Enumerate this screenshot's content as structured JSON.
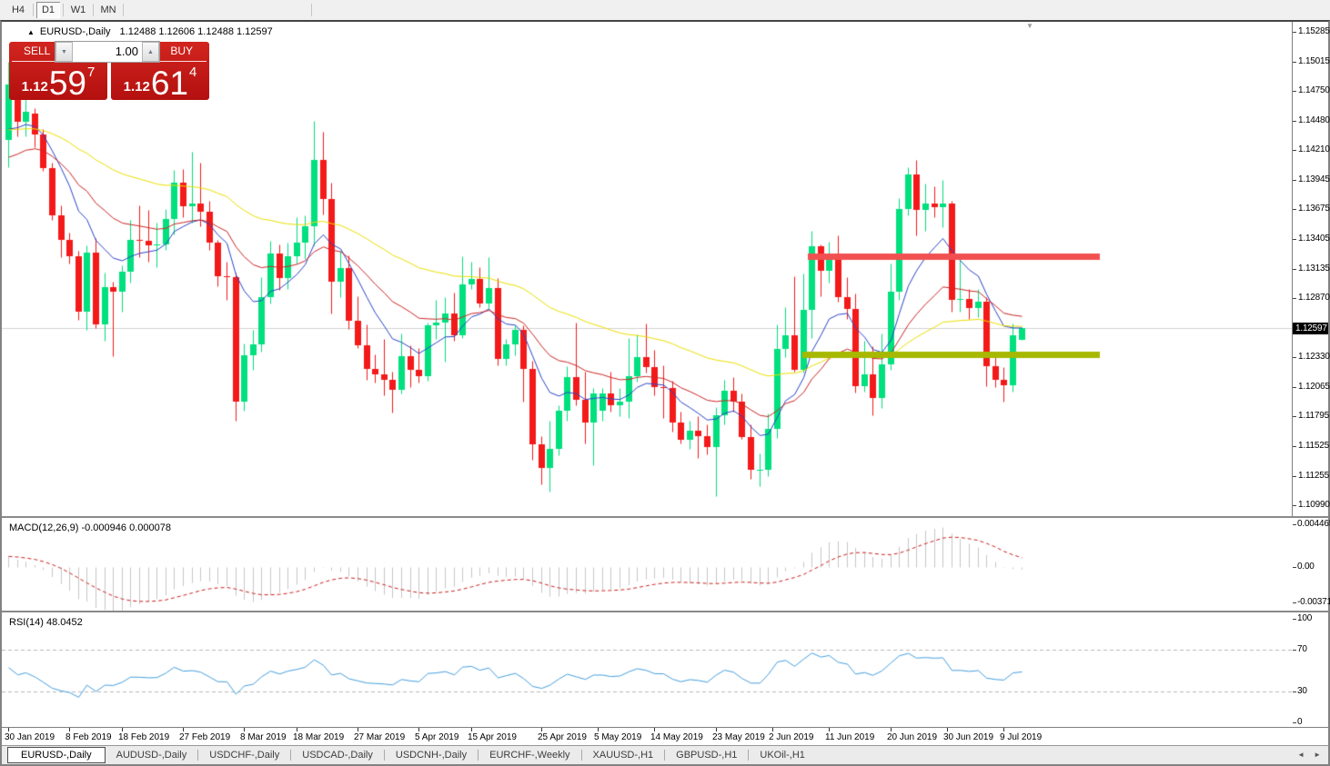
{
  "toolbar": {
    "timeframes": [
      {
        "label": "H4",
        "active": false
      },
      {
        "label": "D1",
        "active": true
      },
      {
        "label": "W1",
        "active": false
      },
      {
        "label": "MN",
        "active": false
      }
    ]
  },
  "chart_header": {
    "collapse_icon": "▲",
    "symbol_period": "EURUSD-,Daily",
    "ohlc_text": "1.12488 1.12606 1.12488 1.12597",
    "scroll_marker": "▼"
  },
  "one_click": {
    "sell_label": "SELL",
    "buy_label": "BUY",
    "volume": "1.00",
    "spin_down_icon": "▼",
    "spin_up_icon": "▲",
    "sell_price_small": "1.12",
    "sell_price_big": "59",
    "sell_price_sup": "7",
    "buy_price_small": "1.12",
    "buy_price_big": "61",
    "buy_price_sup": "4"
  },
  "price_scale": {
    "ticks": [
      "1.15285",
      "1.15015",
      "1.14750",
      "1.14480",
      "1.14210",
      "1.13945",
      "1.13675",
      "1.13405",
      "1.13135",
      "1.12870",
      "1.12330",
      "1.12065",
      "1.11795",
      "1.11525",
      "1.11255",
      "1.10990"
    ],
    "current": "1.12597"
  },
  "macd_panel": {
    "label": "MACD(12,26,9) -0.000946 0.000078",
    "scale": [
      "0.004465",
      "0.00",
      "-0.003715"
    ]
  },
  "rsi_panel": {
    "label": "RSI(14) 48.0452",
    "scale": [
      "100",
      "70",
      "30",
      "0"
    ]
  },
  "date_axis": {
    "labels": [
      {
        "text": "30 Jan 2019",
        "i": 0
      },
      {
        "text": "8 Feb 2019",
        "i": 7
      },
      {
        "text": "18 Feb 2019",
        "i": 13
      },
      {
        "text": "27 Feb 2019",
        "i": 20
      },
      {
        "text": "8 Mar 2019",
        "i": 27
      },
      {
        "text": "18 Mar 2019",
        "i": 33
      },
      {
        "text": "27 Mar 2019",
        "i": 40
      },
      {
        "text": "5 Apr 2019",
        "i": 47
      },
      {
        "text": "15 Apr 2019",
        "i": 53
      },
      {
        "text": "25 Apr 2019",
        "i": 61
      },
      {
        "text": "5 May 2019",
        "i": 67.5
      },
      {
        "text": "14 May 2019",
        "i": 74
      },
      {
        "text": "23 May 2019",
        "i": 81
      },
      {
        "text": "2 Jun 2019",
        "i": 87.5
      },
      {
        "text": "11 Jun 2019",
        "i": 94
      },
      {
        "text": "20 Jun 2019",
        "i": 101
      },
      {
        "text": "30 Jun 2019",
        "i": 107.5
      },
      {
        "text": "9 Jul 2019",
        "i": 114
      }
    ]
  },
  "tabs": {
    "items": [
      {
        "label": "EURUSD-,Daily",
        "active": true
      },
      {
        "label": "AUDUSD-,Daily",
        "active": false
      },
      {
        "label": "USDCHF-,Daily",
        "active": false
      },
      {
        "label": "USDCAD-,Daily",
        "active": false
      },
      {
        "label": "USDCNH-,Daily",
        "active": false
      },
      {
        "label": "EURCHF-,Weekly",
        "active": false
      },
      {
        "label": "XAUUSD-,H1",
        "active": false
      },
      {
        "label": "GBPUSD-,H1",
        "active": false
      },
      {
        "label": "UKOil-,H1",
        "active": false
      }
    ],
    "nav_left": "◄",
    "nav_right": "►"
  },
  "chart_data": {
    "type": "candlestick",
    "symbol": "EURUSD-",
    "period": "Daily",
    "ylim": [
      1.1099,
      1.15285
    ],
    "current_price": 1.12597,
    "colors": {
      "candle_up": "#00e07e",
      "candle_down": "#f41a1a",
      "ma_fast": "#2b45c8",
      "ma_mid": "#cc2626",
      "ma_slow": "#ece000",
      "resistance_line": "#f25050",
      "support_line": "#a6b800",
      "current_line": "#d3d3d3",
      "macd_hist": "#c6c6c6",
      "macd_signal": "#cc2222",
      "rsi_line": "#46a0e0",
      "rsi_levels": "#b8b8b8"
    },
    "overlays": [
      {
        "name": "ma_fast",
        "type": "EMA",
        "period": 9,
        "seed": 1.143
      },
      {
        "name": "ma_mid",
        "type": "EMA",
        "period": 21,
        "seed": 1.1408
      },
      {
        "name": "ma_slow",
        "type": "EMA",
        "period": 50,
        "seed": 1.1438
      }
    ],
    "hlines": [
      {
        "name": "resistance",
        "price": 1.1325,
        "x_from": 886,
        "x_to": 1207,
        "thickness": 7
      },
      {
        "name": "support",
        "price": 1.1236,
        "x_from": 880,
        "x_to": 1207,
        "thickness": 7
      }
    ],
    "indicators": {
      "macd": {
        "fast": 12,
        "slow": 26,
        "signal": 9,
        "value": -0.000946,
        "signal_value": 7.8e-05,
        "scale_max": 0.004465,
        "scale_min": -0.003715
      },
      "rsi": {
        "period": 14,
        "value": 48.0452,
        "levels": [
          70,
          30
        ],
        "scale": [
          0,
          100
        ]
      }
    },
    "candles": [
      [
        "2019-01-30",
        1.143,
        1.1501,
        1.1406,
        1.1481
      ],
      [
        "2019-01-31",
        1.1481,
        1.1489,
        1.1434,
        1.1447
      ],
      [
        "2019-02-01",
        1.1447,
        1.1488,
        1.1434,
        1.1456
      ],
      [
        "2019-02-04",
        1.1454,
        1.1459,
        1.1424,
        1.1435
      ],
      [
        "2019-02-05",
        1.1435,
        1.144,
        1.1402,
        1.1405
      ],
      [
        "2019-02-06",
        1.1405,
        1.141,
        1.1358,
        1.1362
      ],
      [
        "2019-02-07",
        1.1362,
        1.1371,
        1.1324,
        1.134
      ],
      [
        "2019-02-08",
        1.134,
        1.1346,
        1.1318,
        1.1325
      ],
      [
        "2019-02-11",
        1.1325,
        1.133,
        1.1267,
        1.1275
      ],
      [
        "2019-02-12",
        1.1275,
        1.1335,
        1.1258,
        1.1328
      ],
      [
        "2019-02-13",
        1.1328,
        1.1341,
        1.126,
        1.1263
      ],
      [
        "2019-02-14",
        1.1263,
        1.131,
        1.1248,
        1.1297
      ],
      [
        "2019-02-15",
        1.1297,
        1.1302,
        1.1234,
        1.1293
      ],
      [
        "2019-02-18",
        1.1293,
        1.1317,
        1.1275,
        1.1311
      ],
      [
        "2019-02-19",
        1.1311,
        1.1358,
        1.1301,
        1.134
      ],
      [
        "2019-02-20",
        1.134,
        1.1371,
        1.1324,
        1.1339
      ],
      [
        "2019-02-21",
        1.1339,
        1.1367,
        1.132,
        1.1335
      ],
      [
        "2019-02-22",
        1.1335,
        1.1355,
        1.1315,
        1.1336
      ],
      [
        "2019-02-25",
        1.1336,
        1.1368,
        1.1331,
        1.1359
      ],
      [
        "2019-02-26",
        1.1359,
        1.1403,
        1.1345,
        1.1392
      ],
      [
        "2019-02-27",
        1.1392,
        1.1404,
        1.136,
        1.137
      ],
      [
        "2019-02-28",
        1.137,
        1.142,
        1.1355,
        1.1373
      ],
      [
        "2019-03-01",
        1.1373,
        1.141,
        1.1352,
        1.1365
      ],
      [
        "2019-03-04",
        1.1365,
        1.1375,
        1.1331,
        1.1337
      ],
      [
        "2019-03-05",
        1.1337,
        1.134,
        1.1298,
        1.1307
      ],
      [
        "2019-03-06",
        1.1307,
        1.132,
        1.1285,
        1.1306
      ],
      [
        "2019-03-07",
        1.1306,
        1.131,
        1.1176,
        1.1193
      ],
      [
        "2019-03-08",
        1.1193,
        1.1246,
        1.1185,
        1.1235
      ],
      [
        "2019-03-11",
        1.1235,
        1.1258,
        1.1222,
        1.1245
      ],
      [
        "2019-03-12",
        1.1245,
        1.1306,
        1.1238,
        1.1288
      ],
      [
        "2019-03-13",
        1.1288,
        1.1339,
        1.1282,
        1.1327
      ],
      [
        "2019-03-14",
        1.1327,
        1.1336,
        1.1294,
        1.1305
      ],
      [
        "2019-03-15",
        1.1305,
        1.1337,
        1.1295,
        1.1325
      ],
      [
        "2019-03-18",
        1.1325,
        1.136,
        1.1318,
        1.1337
      ],
      [
        "2019-03-19",
        1.1337,
        1.1362,
        1.1322,
        1.1352
      ],
      [
        "2019-03-20",
        1.1352,
        1.1448,
        1.1335,
        1.1412
      ],
      [
        "2019-03-21",
        1.1412,
        1.1438,
        1.1363,
        1.1377
      ],
      [
        "2019-03-22",
        1.1377,
        1.1392,
        1.1273,
        1.1302
      ],
      [
        "2019-03-25",
        1.1302,
        1.133,
        1.1288,
        1.1314
      ],
      [
        "2019-03-26",
        1.1314,
        1.1326,
        1.1259,
        1.1266
      ],
      [
        "2019-03-27",
        1.1266,
        1.1289,
        1.1242,
        1.1244
      ],
      [
        "2019-03-28",
        1.1244,
        1.1263,
        1.1213,
        1.1223
      ],
      [
        "2019-03-29",
        1.1223,
        1.1236,
        1.121,
        1.1218
      ],
      [
        "2019-04-01",
        1.1218,
        1.125,
        1.1199,
        1.1213
      ],
      [
        "2019-04-02",
        1.1213,
        1.122,
        1.1183,
        1.1204
      ],
      [
        "2019-04-03",
        1.1204,
        1.1255,
        1.12,
        1.1234
      ],
      [
        "2019-04-04",
        1.1234,
        1.1244,
        1.1206,
        1.1222
      ],
      [
        "2019-04-05",
        1.1222,
        1.1242,
        1.121,
        1.1216
      ],
      [
        "2019-04-08",
        1.1216,
        1.1265,
        1.1212,
        1.1262
      ],
      [
        "2019-04-09",
        1.1262,
        1.1285,
        1.125,
        1.1265
      ],
      [
        "2019-04-10",
        1.1265,
        1.1288,
        1.1229,
        1.1273
      ],
      [
        "2019-04-11",
        1.1273,
        1.1292,
        1.1248,
        1.1253
      ],
      [
        "2019-04-12",
        1.1253,
        1.1325,
        1.1251,
        1.1299
      ],
      [
        "2019-04-15",
        1.1299,
        1.132,
        1.1295,
        1.1304
      ],
      [
        "2019-04-16",
        1.1304,
        1.1315,
        1.1279,
        1.1282
      ],
      [
        "2019-04-17",
        1.1282,
        1.1324,
        1.1278,
        1.1296
      ],
      [
        "2019-04-18",
        1.1296,
        1.1305,
        1.1226,
        1.1232
      ],
      [
        "2019-04-19",
        1.1232,
        1.125,
        1.1226,
        1.1245
      ],
      [
        "2019-04-22",
        1.1245,
        1.1262,
        1.1235,
        1.1258
      ],
      [
        "2019-04-23",
        1.1258,
        1.1262,
        1.1193,
        1.1223
      ],
      [
        "2019-04-24",
        1.1223,
        1.123,
        1.114,
        1.1154
      ],
      [
        "2019-04-25",
        1.1154,
        1.1162,
        1.1118,
        1.1133
      ],
      [
        "2019-04-26",
        1.1133,
        1.1176,
        1.1111,
        1.115
      ],
      [
        "2019-04-29",
        1.115,
        1.119,
        1.1144,
        1.1185
      ],
      [
        "2019-04-30",
        1.1185,
        1.1225,
        1.1176,
        1.1215
      ],
      [
        "2019-05-01",
        1.1215,
        1.1265,
        1.119,
        1.1195
      ],
      [
        "2019-05-02",
        1.1195,
        1.122,
        1.1155,
        1.1174
      ],
      [
        "2019-05-03",
        1.1174,
        1.1205,
        1.1135,
        1.12
      ],
      [
        "2019-05-06",
        1.1185,
        1.1205,
        1.1176,
        1.12
      ],
      [
        "2019-05-07",
        1.12,
        1.122,
        1.1184,
        1.119
      ],
      [
        "2019-05-08",
        1.119,
        1.1205,
        1.118,
        1.1193
      ],
      [
        "2019-05-09",
        1.1193,
        1.1251,
        1.1178,
        1.1216
      ],
      [
        "2019-05-10",
        1.1216,
        1.1254,
        1.1211,
        1.1233
      ],
      [
        "2019-05-13",
        1.1233,
        1.1264,
        1.1219,
        1.1224
      ],
      [
        "2019-05-14",
        1.1224,
        1.124,
        1.1199,
        1.1206
      ],
      [
        "2019-05-15",
        1.1206,
        1.1226,
        1.1178,
        1.1205
      ],
      [
        "2019-05-16",
        1.1205,
        1.1212,
        1.1166,
        1.1174
      ],
      [
        "2019-05-17",
        1.1174,
        1.1184,
        1.1155,
        1.1158
      ],
      [
        "2019-05-20",
        1.1158,
        1.1176,
        1.115,
        1.1167
      ],
      [
        "2019-05-21",
        1.1167,
        1.118,
        1.1142,
        1.1162
      ],
      [
        "2019-05-22",
        1.1162,
        1.1172,
        1.1145,
        1.1152
      ],
      [
        "2019-05-23",
        1.1152,
        1.1188,
        1.1107,
        1.1181
      ],
      [
        "2019-05-24",
        1.1181,
        1.1213,
        1.1172,
        1.1203
      ],
      [
        "2019-05-27",
        1.1203,
        1.1215,
        1.1184,
        1.1193
      ],
      [
        "2019-05-28",
        1.1193,
        1.12,
        1.1159,
        1.1161
      ],
      [
        "2019-05-29",
        1.1161,
        1.1172,
        1.1123,
        1.1131
      ],
      [
        "2019-05-30",
        1.1131,
        1.1146,
        1.1116,
        1.1131
      ],
      [
        "2019-05-31",
        1.1131,
        1.1182,
        1.1125,
        1.1168
      ],
      [
        "2019-06-03",
        1.1168,
        1.1263,
        1.116,
        1.1241
      ],
      [
        "2019-06-04",
        1.1241,
        1.1279,
        1.1233,
        1.1253
      ],
      [
        "2019-06-05",
        1.1253,
        1.1307,
        1.122,
        1.1222
      ],
      [
        "2019-06-06",
        1.1222,
        1.1309,
        1.1219,
        1.1276
      ],
      [
        "2019-06-07",
        1.1276,
        1.1348,
        1.1251,
        1.1334
      ],
      [
        "2019-06-10",
        1.1334,
        1.1336,
        1.1289,
        1.1312
      ],
      [
        "2019-06-11",
        1.1312,
        1.1338,
        1.1301,
        1.1327
      ],
      [
        "2019-06-12",
        1.1327,
        1.1344,
        1.1284,
        1.1288
      ],
      [
        "2019-06-13",
        1.1288,
        1.1306,
        1.1268,
        1.1277
      ],
      [
        "2019-06-14",
        1.1277,
        1.1291,
        1.1201,
        1.1207
      ],
      [
        "2019-06-17",
        1.1207,
        1.1248,
        1.1202,
        1.1218
      ],
      [
        "2019-06-18",
        1.1218,
        1.1243,
        1.1181,
        1.1196
      ],
      [
        "2019-06-19",
        1.1196,
        1.1255,
        1.1187,
        1.1227
      ],
      [
        "2019-06-20",
        1.1227,
        1.1318,
        1.1222,
        1.1293
      ],
      [
        "2019-06-21",
        1.1293,
        1.1378,
        1.1285,
        1.1368
      ],
      [
        "2019-06-24",
        1.1368,
        1.1406,
        1.1362,
        1.1399
      ],
      [
        "2019-06-25",
        1.1399,
        1.1412,
        1.1344,
        1.1367
      ],
      [
        "2019-06-26",
        1.1367,
        1.1391,
        1.1348,
        1.1373
      ],
      [
        "2019-06-27",
        1.1373,
        1.1388,
        1.136,
        1.1369
      ],
      [
        "2019-06-28",
        1.1369,
        1.1394,
        1.1351,
        1.1373
      ],
      [
        "2019-07-01",
        1.1373,
        1.1375,
        1.1275,
        1.1285
      ],
      [
        "2019-07-02",
        1.1285,
        1.1322,
        1.1275,
        1.1286
      ],
      [
        "2019-07-03",
        1.1286,
        1.1295,
        1.1268,
        1.1278
      ],
      [
        "2019-07-04",
        1.1278,
        1.1295,
        1.127,
        1.1284
      ],
      [
        "2019-07-05",
        1.1284,
        1.1288,
        1.1207,
        1.1225
      ],
      [
        "2019-07-08",
        1.1225,
        1.1235,
        1.1206,
        1.1213
      ],
      [
        "2019-07-09",
        1.1213,
        1.1224,
        1.1193,
        1.1208
      ],
      [
        "2019-07-10",
        1.1208,
        1.1264,
        1.1202,
        1.1253
      ],
      [
        "2019-07-11",
        1.12488,
        1.12606,
        1.12488,
        1.12597
      ]
    ]
  }
}
